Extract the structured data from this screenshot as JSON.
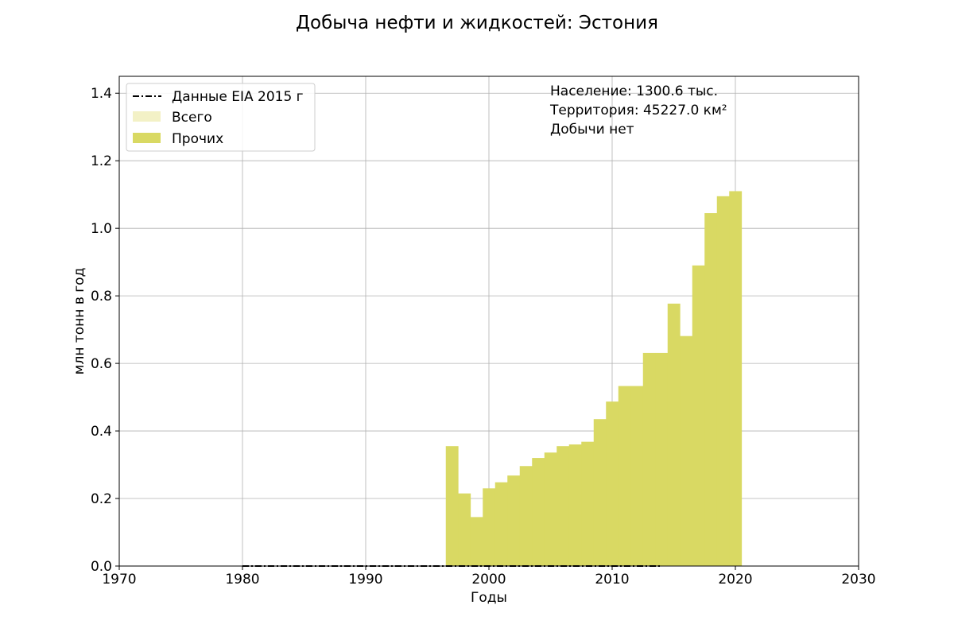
{
  "chart_data": {
    "type": "area",
    "title": "Добыча нефти и жидкостей: Эстония",
    "xlabel": "Годы",
    "ylabel": "млн тонн в год",
    "xlim": [
      1970,
      2030
    ],
    "ylim": [
      0,
      1.45
    ],
    "xticks": [
      "1970",
      "1980",
      "1990",
      "2000",
      "2010",
      "2020",
      "2030"
    ],
    "yticks": [
      "0.0",
      "0.2",
      "0.4",
      "0.6",
      "0.8",
      "1.0",
      "1.2",
      "1.4"
    ],
    "grid": true,
    "legend_position": "top-left",
    "annotations": [
      "Население: 1300.6 тыс.",
      "Территория: 45227.0 км²",
      "Добычи нет"
    ],
    "series": [
      {
        "name": "Данные EIA 2015 г",
        "style": "dash-dot",
        "color": "#000000",
        "x": [
          1980,
          2014
        ],
        "values": [
          0,
          0
        ]
      },
      {
        "name": "Всего",
        "color": "#f3f1c6",
        "years": [],
        "values": []
      },
      {
        "name": "Прочих",
        "color": "#d9d963",
        "years": [
          1997,
          1998,
          1999,
          2000,
          2001,
          2002,
          2003,
          2004,
          2005,
          2006,
          2007,
          2008,
          2009,
          2010,
          2011,
          2012,
          2013,
          2014,
          2015,
          2016,
          2017,
          2018,
          2019,
          2020
        ],
        "values": [
          0.355,
          0.215,
          0.145,
          0.23,
          0.248,
          0.268,
          0.296,
          0.32,
          0.336,
          0.355,
          0.36,
          0.368,
          0.435,
          0.487,
          0.533,
          0.533,
          0.631,
          0.631,
          0.777,
          0.681,
          0.89,
          1.045,
          1.095,
          1.11
        ]
      }
    ]
  }
}
